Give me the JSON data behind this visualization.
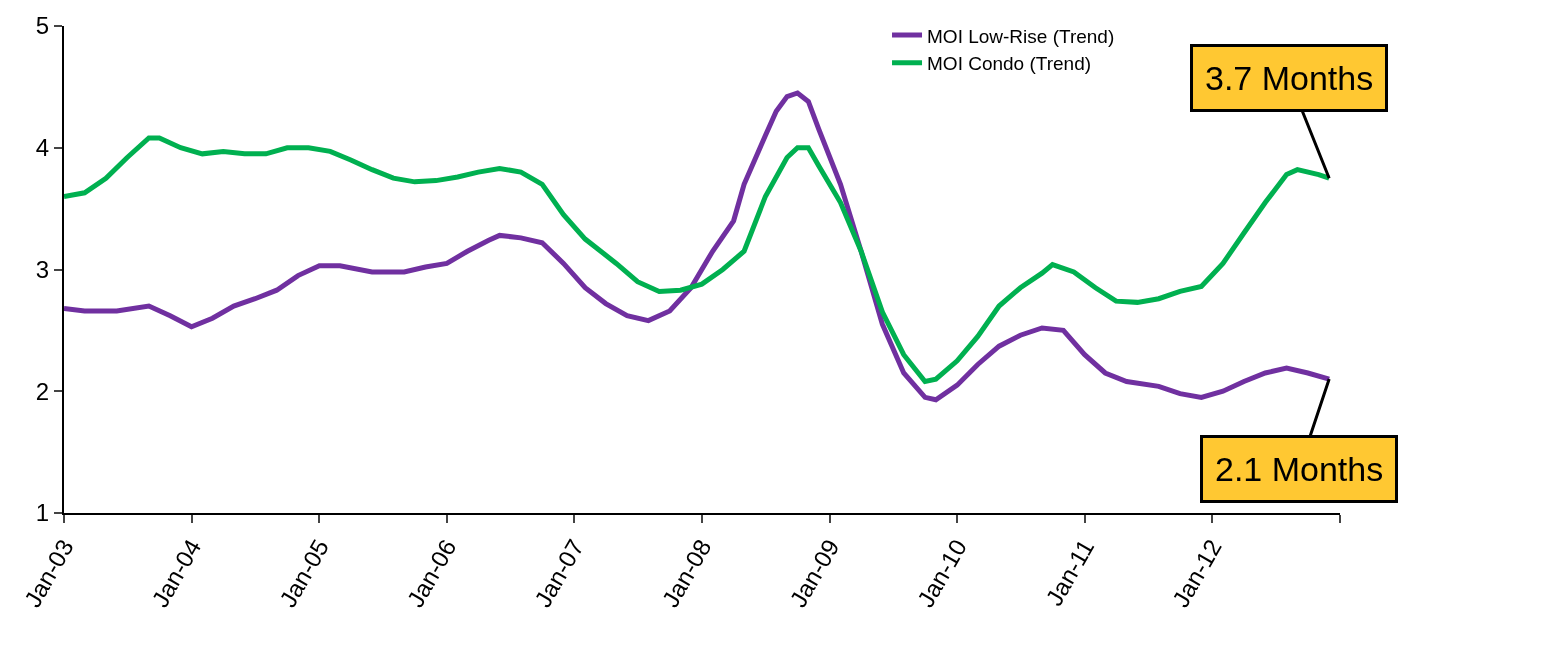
{
  "chart_data": {
    "type": "line",
    "x": [
      "2003-01",
      "2003-03",
      "2003-06",
      "2003-09",
      "2003-11",
      "2004-01",
      "2004-03",
      "2004-05",
      "2004-07",
      "2004-09",
      "2004-11",
      "2005-01",
      "2005-03",
      "2005-06",
      "2005-09",
      "2005-11",
      "2006-01",
      "2006-03",
      "2006-05",
      "2006-06",
      "2006-08",
      "2006-10",
      "2006-12",
      "2007-02",
      "2007-04",
      "2007-06",
      "2007-08",
      "2007-10",
      "2007-12",
      "2008-02",
      "2008-04",
      "2008-05",
      "2008-07",
      "2008-08",
      "2008-09",
      "2008-10",
      "2008-11",
      "2008-12",
      "2009-02",
      "2009-04",
      "2009-06",
      "2009-08",
      "2009-10",
      "2009-11",
      "2010-01",
      "2010-03",
      "2010-05",
      "2010-07",
      "2010-09",
      "2010-11",
      "2011-01",
      "2011-03",
      "2011-05",
      "2011-08",
      "2011-10",
      "2011-12",
      "2012-02",
      "2012-04",
      "2012-06",
      "2012-08",
      "2012-10",
      "2012-12"
    ],
    "series": [
      {
        "name": "MOI Low-Rise (Trend)",
        "color": "#7030a0",
        "values": [
          2.68,
          2.66,
          2.66,
          2.7,
          2.62,
          2.53,
          2.6,
          2.7,
          2.76,
          2.83,
          2.95,
          3.03,
          3.03,
          2.98,
          2.98,
          3.02,
          3.05,
          3.15,
          3.24,
          3.28,
          3.26,
          3.22,
          3.05,
          2.85,
          2.72,
          2.62,
          2.58,
          2.66,
          2.85,
          3.15,
          3.4,
          3.7,
          4.1,
          4.3,
          4.42,
          4.45,
          4.38,
          4.15,
          3.7,
          3.15,
          2.55,
          2.15,
          1.95,
          1.93,
          2.05,
          2.22,
          2.37,
          2.46,
          2.52,
          2.5,
          2.3,
          2.15,
          2.08,
          2.04,
          1.98,
          1.95,
          2.0,
          2.08,
          2.15,
          2.19,
          2.15,
          2.1
        ]
      },
      {
        "name": "MOI Condo (Trend)",
        "color": "#00b050",
        "x": [
          "2003-01",
          "2003-03",
          "2003-05",
          "2003-07",
          "2003-09",
          "2003-10",
          "2003-12",
          "2004-02",
          "2004-04",
          "2004-06",
          "2004-08",
          "2004-10",
          "2004-12",
          "2005-02",
          "2005-04",
          "2005-06",
          "2005-08",
          "2005-10",
          "2005-12",
          "2006-02",
          "2006-04",
          "2006-06",
          "2006-08",
          "2006-10",
          "2006-12",
          "2007-02",
          "2007-05",
          "2007-07",
          "2007-09",
          "2007-11",
          "2008-01",
          "2008-03",
          "2008-05",
          "2008-07",
          "2008-09",
          "2008-10",
          "2008-11",
          "2008-12",
          "2009-02",
          "2009-04",
          "2009-06",
          "2009-08",
          "2009-10",
          "2009-11",
          "2010-01",
          "2010-03",
          "2010-05",
          "2010-07",
          "2010-09",
          "2010-10",
          "2010-12",
          "2011-02",
          "2011-04",
          "2011-06",
          "2011-08",
          "2011-10",
          "2011-12",
          "2012-02",
          "2012-04",
          "2012-06",
          "2012-08",
          "2012-09",
          "2012-11",
          "2012-12"
        ],
        "values": [
          3.6,
          3.63,
          3.75,
          3.92,
          4.08,
          4.08,
          4.0,
          3.95,
          3.97,
          3.95,
          3.95,
          4.0,
          4.0,
          3.97,
          3.9,
          3.82,
          3.75,
          3.72,
          3.73,
          3.76,
          3.8,
          3.83,
          3.8,
          3.7,
          3.45,
          3.25,
          3.05,
          2.9,
          2.82,
          2.83,
          2.88,
          3.0,
          3.15,
          3.6,
          3.92,
          4.0,
          4.0,
          3.85,
          3.55,
          3.15,
          2.65,
          2.3,
          2.08,
          2.1,
          2.25,
          2.45,
          2.7,
          2.85,
          2.97,
          3.04,
          2.98,
          2.85,
          2.74,
          2.73,
          2.76,
          2.82,
          2.86,
          3.05,
          3.3,
          3.55,
          3.78,
          3.82,
          3.78,
          3.75
        ]
      }
    ],
    "xlim": [
      "2003-01",
      "2013-01"
    ],
    "xticks": [
      {
        "value": "2003-01",
        "label": "Jan-03"
      },
      {
        "value": "2004-01",
        "label": "Jan-04"
      },
      {
        "value": "2005-01",
        "label": "Jan-05"
      },
      {
        "value": "2006-01",
        "label": "Jan-06"
      },
      {
        "value": "2007-01",
        "label": "Jan-07"
      },
      {
        "value": "2008-01",
        "label": "Jan-08"
      },
      {
        "value": "2009-01",
        "label": "Jan-09"
      },
      {
        "value": "2010-01",
        "label": "Jan-10"
      },
      {
        "value": "2011-01",
        "label": "Jan-11"
      },
      {
        "value": "2012-01",
        "label": "Jan-12"
      },
      {
        "value": "2013-01",
        "label": null
      }
    ],
    "ylim": [
      1,
      5
    ],
    "yticks": [
      1,
      2,
      3,
      4,
      5
    ],
    "annotations": [
      {
        "text": "3.7 Months",
        "x": "2012-12",
        "y": 3.75
      },
      {
        "text": "2.1 Months",
        "x": "2012-12",
        "y": 2.1
      }
    ],
    "legend": "top right",
    "marker": "none",
    "line_style": "solid"
  }
}
